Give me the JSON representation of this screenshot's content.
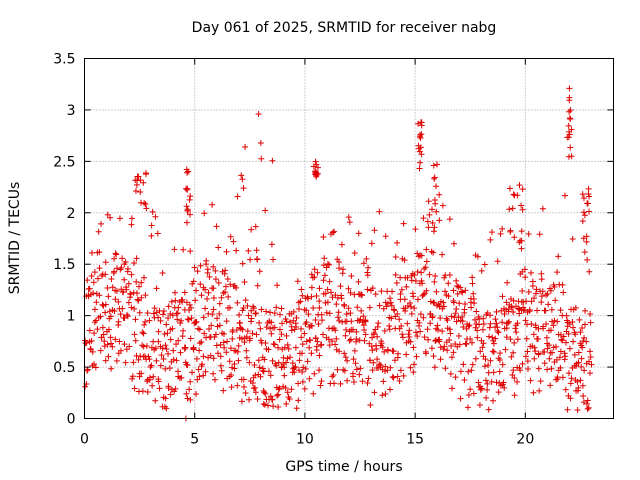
{
  "chart_data": {
    "type": "scatter",
    "title": "Day 061 of 2025, SRMTID for receiver nabg",
    "xlabel": "GPS time / hours",
    "ylabel": "SRMTID / TECUs",
    "xlim": [
      0,
      24
    ],
    "ylim": [
      0,
      3.5
    ],
    "xticks": [
      0,
      5,
      10,
      15,
      20
    ],
    "yticks": [
      0,
      0.5,
      1,
      1.5,
      2,
      2.5,
      3,
      3.5
    ],
    "xtick_labels": [
      "0",
      "5",
      "10",
      "15",
      "20"
    ],
    "ytick_labels": [
      "0",
      "0.5",
      "1",
      "1.5",
      "2",
      "2.5",
      "3",
      "3.5"
    ],
    "grid": true,
    "marker": "+",
    "series_color": "#e00000",
    "time_range_hours": [
      0,
      23
    ],
    "sample_step_hours": 0.05,
    "clusters": [
      {
        "x_from": 2.3,
        "x_to": 2.8,
        "y_from": 2.0,
        "y_to": 2.4
      },
      {
        "x_from": 4.6,
        "x_to": 4.8,
        "y_from": 1.9,
        "y_to": 2.45
      },
      {
        "x_from": 6.9,
        "x_to": 8.8,
        "y_from": 1.5,
        "y_to": 2.75
      },
      {
        "x_from": 10.4,
        "x_to": 10.6,
        "y_from": 2.3,
        "y_to": 2.5
      },
      {
        "x_from": 15.1,
        "x_to": 15.3,
        "y_from": 2.4,
        "y_to": 2.9
      },
      {
        "x_from": 15.7,
        "x_to": 16.1,
        "y_from": 1.8,
        "y_to": 2.5
      },
      {
        "x_from": 19.3,
        "x_to": 19.9,
        "y_from": 1.6,
        "y_to": 2.3
      },
      {
        "x_from": 21.9,
        "x_to": 22.1,
        "y_from": 2.5,
        "y_to": 3.2
      },
      {
        "x_from": 22.6,
        "x_to": 22.9,
        "y_from": 1.7,
        "y_to": 2.4
      }
    ],
    "outliers": [
      {
        "x": 7.9,
        "y": 2.96
      },
      {
        "x": 22.0,
        "y": 3.21
      },
      {
        "x": 22.0,
        "y": 3.12
      },
      {
        "x": 4.6,
        "y": 0.0
      },
      {
        "x": 15.3,
        "y": 2.85
      }
    ]
  }
}
